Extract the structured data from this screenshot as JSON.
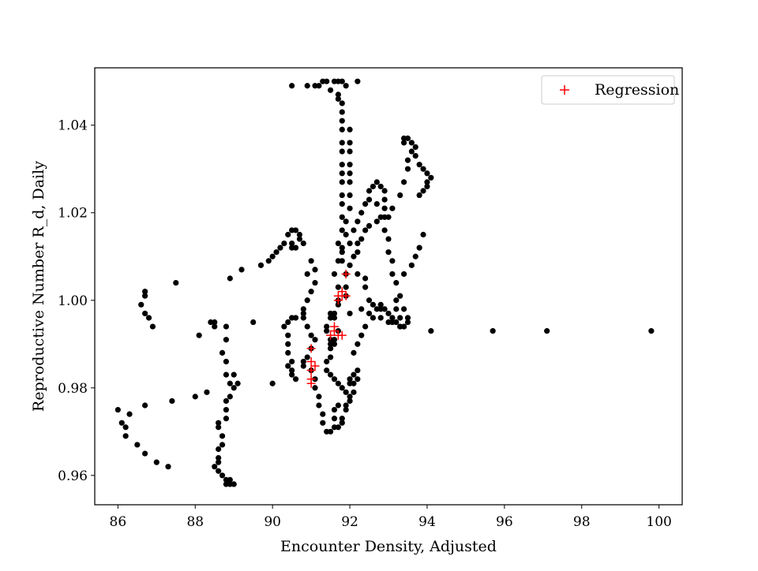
{
  "chart_data": {
    "type": "scatter",
    "xlabel": "Encounter Density, Adjusted",
    "ylabel": "Reproductive Number R_d, Daily",
    "xlim": [
      85.4,
      100.6
    ],
    "ylim": [
      0.9533,
      1.0531
    ],
    "xticks": [
      "86",
      "88",
      "90",
      "92",
      "94",
      "96",
      "98",
      "100"
    ],
    "yticks": [
      "0.96",
      "0.98",
      "1.00",
      "1.02",
      "1.04"
    ],
    "grid": false,
    "legend": {
      "placement": "top-right",
      "entries": [
        "Regression"
      ]
    },
    "colors": {
      "data": "#000000",
      "regression": "#ff0000"
    },
    "series": [
      {
        "marker": "dot",
        "points": [
          [
            86.0,
            0.975
          ],
          [
            86.1,
            0.972
          ],
          [
            86.2,
            0.969
          ],
          [
            86.2,
            0.971
          ],
          [
            86.3,
            0.974
          ],
          [
            86.5,
            0.967
          ],
          [
            86.7,
            0.965
          ],
          [
            87.0,
            0.963
          ],
          [
            87.3,
            0.962
          ],
          [
            86.6,
            0.999
          ],
          [
            86.7,
            1.001
          ],
          [
            86.7,
            1.002
          ],
          [
            86.7,
            0.997
          ],
          [
            86.8,
            0.996
          ],
          [
            86.9,
            0.994
          ],
          [
            87.5,
            1.004
          ],
          [
            86.7,
            0.976
          ],
          [
            87.4,
            0.977
          ],
          [
            88.0,
            0.978
          ],
          [
            88.3,
            0.979
          ],
          [
            88.1,
            0.992
          ],
          [
            88.4,
            0.995
          ],
          [
            88.5,
            0.995
          ],
          [
            88.5,
            0.994
          ],
          [
            88.8,
            0.994
          ],
          [
            88.8,
            0.991
          ],
          [
            88.7,
            0.988
          ],
          [
            88.8,
            0.986
          ],
          [
            88.8,
            0.983
          ],
          [
            88.9,
            0.981
          ],
          [
            89.0,
            0.98
          ],
          [
            89.1,
            0.981
          ],
          [
            89.0,
            0.983
          ],
          [
            88.9,
            0.978
          ],
          [
            88.8,
            0.977
          ],
          [
            88.8,
            0.975
          ],
          [
            88.8,
            0.973
          ],
          [
            88.6,
            0.972
          ],
          [
            88.6,
            0.971
          ],
          [
            88.7,
            0.969
          ],
          [
            88.7,
            0.967
          ],
          [
            88.6,
            0.966
          ],
          [
            88.6,
            0.964
          ],
          [
            88.6,
            0.963
          ],
          [
            88.5,
            0.962
          ],
          [
            88.6,
            0.961
          ],
          [
            88.7,
            0.96
          ],
          [
            88.8,
            0.959
          ],
          [
            88.9,
            0.958
          ],
          [
            89.0,
            0.958
          ],
          [
            88.9,
            0.959
          ],
          [
            88.8,
            0.958
          ],
          [
            88.9,
            1.005
          ],
          [
            89.2,
            1.007
          ],
          [
            89.5,
            0.995
          ],
          [
            89.7,
            1.008
          ],
          [
            89.9,
            1.009
          ],
          [
            90.0,
            1.01
          ],
          [
            90.0,
            0.981
          ],
          [
            90.1,
            1.011
          ],
          [
            90.2,
            1.012
          ],
          [
            90.3,
            1.013
          ],
          [
            90.4,
            1.015
          ],
          [
            90.5,
            1.016
          ],
          [
            90.6,
            1.016
          ],
          [
            90.7,
            1.015
          ],
          [
            90.7,
            1.014
          ],
          [
            90.8,
            1.013
          ],
          [
            90.6,
            1.012
          ],
          [
            90.5,
            1.013
          ],
          [
            90.5,
            1.012
          ],
          [
            90.3,
            0.994
          ],
          [
            90.4,
            0.995
          ],
          [
            90.5,
            0.996
          ],
          [
            90.6,
            0.996
          ],
          [
            90.8,
            0.997
          ],
          [
            90.9,
            1.006
          ],
          [
            91.0,
            1.009
          ],
          [
            91.1,
            1.007
          ],
          [
            91.1,
            1.004
          ],
          [
            91.0,
            1.002
          ],
          [
            90.9,
            1.0
          ],
          [
            90.8,
            0.998
          ],
          [
            90.8,
            0.996
          ],
          [
            90.9,
            0.994
          ],
          [
            91.0,
            0.992
          ],
          [
            91.1,
            0.991
          ],
          [
            91.0,
            0.989
          ],
          [
            90.9,
            0.987
          ],
          [
            90.8,
            0.986
          ],
          [
            90.8,
            0.985
          ],
          [
            90.4,
            0.992
          ],
          [
            90.4,
            0.99
          ],
          [
            90.4,
            0.988
          ],
          [
            90.4,
            0.985
          ],
          [
            90.5,
            0.983
          ],
          [
            90.6,
            0.982
          ],
          [
            90.5,
            0.986
          ],
          [
            90.5,
            0.984
          ],
          [
            90.5,
            1.049
          ],
          [
            90.9,
            1.049
          ],
          [
            91.1,
            1.049
          ],
          [
            91.2,
            1.049
          ],
          [
            91.3,
            1.05
          ],
          [
            91.4,
            1.05
          ],
          [
            91.5,
            1.048
          ],
          [
            91.6,
            1.05
          ],
          [
            91.7,
            1.05
          ],
          [
            91.8,
            1.05
          ],
          [
            91.9,
            1.049
          ],
          [
            92.2,
            1.05
          ],
          [
            91.7,
            1.047
          ],
          [
            91.7,
            1.046
          ],
          [
            91.8,
            1.045
          ],
          [
            91.8,
            1.043
          ],
          [
            91.8,
            1.041
          ],
          [
            91.8,
            1.039
          ],
          [
            91.8,
            1.036
          ],
          [
            91.8,
            1.034
          ],
          [
            91.8,
            1.031
          ],
          [
            91.8,
            1.029
          ],
          [
            91.8,
            1.027
          ],
          [
            91.8,
            1.024
          ],
          [
            91.8,
            1.022
          ],
          [
            91.8,
            1.019
          ],
          [
            91.8,
            1.016
          ],
          [
            91.7,
            1.013
          ],
          [
            91.8,
            1.011
          ],
          [
            91.7,
            1.009
          ],
          [
            91.6,
            1.006
          ],
          [
            91.7,
            1.003
          ],
          [
            91.7,
            1.0
          ],
          [
            92.0,
            1.039
          ],
          [
            92.0,
            1.036
          ],
          [
            92.0,
            1.034
          ],
          [
            92.0,
            1.031
          ],
          [
            92.0,
            1.029
          ],
          [
            92.0,
            1.027
          ],
          [
            92.0,
            1.024
          ],
          [
            92.0,
            1.021
          ],
          [
            91.9,
            1.018
          ],
          [
            91.9,
            1.015
          ],
          [
            91.8,
            1.012
          ],
          [
            91.8,
            1.009
          ],
          [
            91.9,
            1.006
          ],
          [
            91.9,
            1.003
          ],
          [
            91.9,
            1.001
          ],
          [
            91.7,
            0.999
          ],
          [
            91.6,
            0.997
          ],
          [
            91.5,
            0.996
          ],
          [
            91.4,
            0.994
          ],
          [
            91.4,
            0.993
          ],
          [
            91.5,
            0.991
          ],
          [
            91.6,
            0.99
          ],
          [
            91.5,
            0.989
          ],
          [
            91.5,
            0.987
          ],
          [
            91.4,
            0.986
          ],
          [
            91.4,
            0.984
          ],
          [
            91.5,
            0.983
          ],
          [
            91.6,
            0.982
          ],
          [
            91.7,
            0.981
          ],
          [
            91.8,
            0.98
          ],
          [
            91.9,
            0.979
          ],
          [
            92.0,
            0.978
          ],
          [
            92.0,
            0.977
          ],
          [
            91.9,
            0.976
          ],
          [
            91.9,
            0.975
          ],
          [
            91.8,
            0.973
          ],
          [
            91.8,
            0.972
          ],
          [
            91.7,
            0.971
          ],
          [
            91.6,
            0.971
          ],
          [
            91.5,
            0.97
          ],
          [
            91.4,
            0.97
          ],
          [
            91.3,
            0.972
          ],
          [
            91.3,
            0.974
          ],
          [
            91.2,
            0.976
          ],
          [
            91.2,
            0.978
          ],
          [
            91.1,
            0.98
          ],
          [
            91.1,
            0.982
          ],
          [
            91.0,
            0.984
          ],
          [
            91.5,
            0.997
          ],
          [
            91.6,
            0.996
          ],
          [
            91.7,
            0.993
          ],
          [
            91.6,
            0.991
          ],
          [
            91.5,
            0.99
          ],
          [
            91.7,
            0.976
          ],
          [
            91.6,
            0.975
          ],
          [
            91.6,
            0.973
          ],
          [
            92.0,
            0.982
          ],
          [
            92.0,
            0.981
          ],
          [
            92.1,
            0.983
          ],
          [
            92.1,
            0.981
          ],
          [
            92.1,
            0.979
          ],
          [
            92.2,
            0.982
          ],
          [
            92.2,
            0.984
          ],
          [
            92.0,
            1.013
          ],
          [
            92.1,
            1.016
          ],
          [
            92.2,
            1.018
          ],
          [
            92.3,
            1.02
          ],
          [
            92.4,
            1.022
          ],
          [
            92.5,
            1.023
          ],
          [
            92.5,
            1.025
          ],
          [
            92.6,
            1.026
          ],
          [
            92.7,
            1.027
          ],
          [
            92.8,
            1.026
          ],
          [
            92.9,
            1.025
          ],
          [
            92.9,
            1.023
          ],
          [
            92.9,
            1.021
          ],
          [
            92.9,
            1.019
          ],
          [
            92.7,
            1.018
          ],
          [
            92.5,
            1.017
          ],
          [
            92.4,
            1.016
          ],
          [
            92.3,
            1.014
          ],
          [
            92.2,
            1.013
          ],
          [
            92.2,
            1.011
          ],
          [
            92.1,
            1.01
          ],
          [
            92.0,
            1.008
          ],
          [
            92.2,
            1.006
          ],
          [
            92.4,
            1.005
          ],
          [
            92.4,
            1.003
          ],
          [
            92.5,
            1.0
          ],
          [
            92.6,
            0.999
          ],
          [
            92.7,
            0.998
          ],
          [
            92.8,
            0.998
          ],
          [
            92.9,
            0.998
          ],
          [
            93.0,
            0.997
          ],
          [
            93.1,
            0.996
          ],
          [
            93.2,
            0.995
          ],
          [
            93.3,
            0.994
          ],
          [
            93.4,
            0.994
          ],
          [
            93.3,
            0.996
          ],
          [
            93.2,
            0.998
          ],
          [
            93.2,
            1.0
          ],
          [
            93.3,
            1.001
          ],
          [
            93.4,
            0.998
          ],
          [
            93.5,
            0.996
          ],
          [
            93.5,
            0.995
          ],
          [
            93.4,
            0.994
          ],
          [
            93.3,
            0.994
          ],
          [
            93.1,
            0.995
          ],
          [
            92.7,
            1.022
          ],
          [
            92.8,
            1.019
          ],
          [
            92.9,
            1.016
          ],
          [
            93.0,
            1.014
          ],
          [
            93.0,
            1.011
          ],
          [
            93.1,
            1.009
          ],
          [
            93.1,
            1.006
          ],
          [
            93.2,
            1.004
          ],
          [
            92.4,
            0.994
          ],
          [
            92.3,
            0.992
          ],
          [
            92.2,
            0.99
          ],
          [
            92.1,
            0.988
          ],
          [
            92.6,
            0.996
          ],
          [
            92.8,
            0.999
          ],
          [
            93.0,
            1.019
          ],
          [
            93.1,
            1.021
          ],
          [
            93.3,
            1.024
          ],
          [
            93.4,
            1.027
          ],
          [
            93.5,
            1.03
          ],
          [
            93.5,
            1.032
          ],
          [
            93.6,
            1.034
          ],
          [
            93.4,
            1.036
          ],
          [
            93.4,
            1.037
          ],
          [
            93.5,
            1.037
          ],
          [
            93.6,
            1.036
          ],
          [
            93.7,
            1.035
          ],
          [
            93.7,
            1.033
          ],
          [
            93.8,
            1.031
          ],
          [
            93.9,
            1.03
          ],
          [
            94.0,
            1.029
          ],
          [
            94.0,
            1.027
          ],
          [
            94.1,
            1.028
          ],
          [
            94.0,
            1.026
          ],
          [
            93.9,
            1.025
          ],
          [
            93.8,
            1.024
          ],
          [
            93.4,
            1.006
          ],
          [
            93.6,
            1.008
          ],
          [
            93.7,
            1.01
          ],
          [
            93.8,
            1.012
          ],
          [
            93.9,
            1.015
          ],
          [
            94.1,
            0.993
          ],
          [
            95.7,
            0.993
          ],
          [
            97.1,
            0.993
          ],
          [
            99.8,
            0.993
          ],
          [
            92.0,
            0.997
          ],
          [
            92.3,
            0.998
          ],
          [
            92.5,
            0.997
          ],
          [
            92.8,
            0.996
          ],
          [
            93.0,
            0.995
          ]
        ]
      },
      {
        "name": "Regression",
        "marker": "plus",
        "points": [
          [
            91.0,
            0.989
          ],
          [
            91.0,
            0.986
          ],
          [
            91.0,
            0.984
          ],
          [
            91.0,
            0.982
          ],
          [
            91.0,
            0.981
          ],
          [
            91.1,
            0.985
          ],
          [
            91.5,
            0.992
          ],
          [
            91.6,
            0.993
          ],
          [
            91.6,
            0.994
          ],
          [
            91.7,
            0.992
          ],
          [
            91.8,
            0.992
          ],
          [
            91.7,
            1.001
          ],
          [
            91.7,
            1.0
          ],
          [
            91.8,
            1.002
          ],
          [
            91.8,
            1.001
          ],
          [
            91.9,
            1.001
          ],
          [
            91.9,
            1.006
          ]
        ]
      }
    ]
  }
}
